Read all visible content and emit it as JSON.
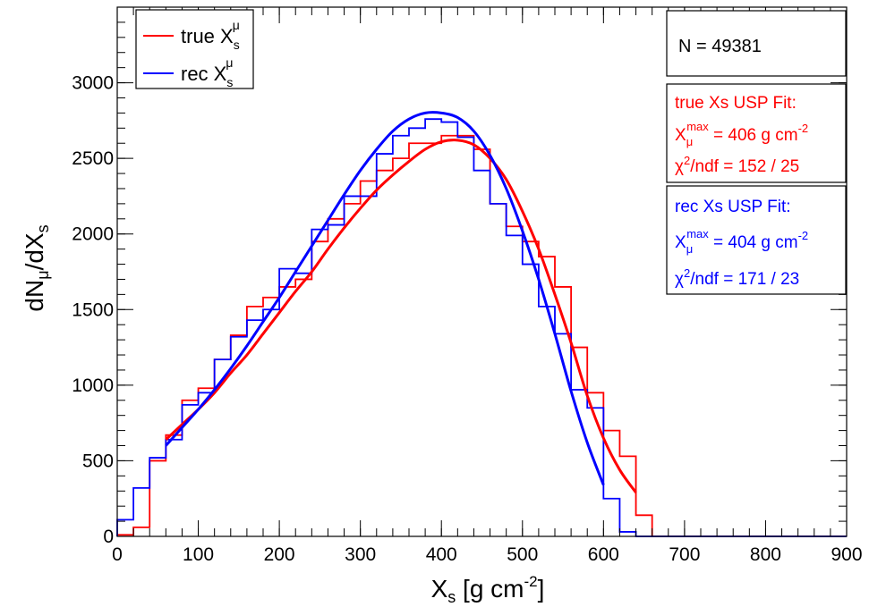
{
  "chart_data": {
    "type": "line",
    "xlabel": "X",
    "xlabel_sub": "s",
    "xlabel_unit_open": " [g cm",
    "xlabel_unit_sup": "-2",
    "xlabel_unit_close": "]",
    "ylabel": "dN",
    "ylabel_sub1": "μ",
    "ylabel_mid": "/dX",
    "ylabel_sub2": "s",
    "xlim": [
      0,
      900
    ],
    "ylim": [
      0,
      3500
    ],
    "x_ticks": [
      0,
      100,
      200,
      300,
      400,
      500,
      600,
      700,
      800,
      900
    ],
    "y_ticks": [
      0,
      500,
      1000,
      1500,
      2000,
      2500,
      3000
    ],
    "bin_edges": [
      0,
      20,
      40,
      60,
      80,
      100,
      120,
      140,
      160,
      180,
      200,
      220,
      240,
      260,
      280,
      300,
      320,
      340,
      360,
      380,
      400,
      420,
      440,
      460,
      480,
      500,
      520,
      540,
      560,
      580,
      600,
      620,
      640,
      660,
      680,
      700,
      720,
      740,
      760,
      780,
      800,
      820,
      840,
      860,
      880,
      900
    ],
    "series": [
      {
        "name": "true",
        "color": "#ff0000",
        "hist": [
          10,
          60,
          500,
          670,
          900,
          980,
          1170,
          1330,
          1520,
          1580,
          1650,
          1700,
          1950,
          2100,
          2200,
          2350,
          2420,
          2500,
          2600,
          2600,
          2650,
          2650,
          2560,
          2200,
          2050,
          1950,
          1850,
          1650,
          1250,
          950,
          700,
          530,
          140,
          0,
          0,
          0,
          0,
          0,
          0,
          0,
          0,
          0,
          0,
          0,
          0
        ],
        "fit_x": [
          60,
          80,
          100,
          120,
          140,
          160,
          180,
          200,
          220,
          240,
          260,
          280,
          300,
          320,
          340,
          360,
          380,
          400,
          420,
          440,
          460,
          480,
          500,
          520,
          540,
          560,
          580,
          600,
          620,
          640
        ],
        "fit_y": [
          640,
          740,
          840,
          950,
          1080,
          1200,
          1340,
          1480,
          1620,
          1750,
          1900,
          2040,
          2170,
          2290,
          2390,
          2480,
          2560,
          2610,
          2620,
          2590,
          2500,
          2360,
          2150,
          1900,
          1600,
          1280,
          930,
          650,
          440,
          290
        ]
      },
      {
        "name": "rec",
        "color": "#0000ff",
        "hist": [
          110,
          320,
          520,
          640,
          870,
          950,
          1170,
          1320,
          1430,
          1500,
          1770,
          1740,
          2030,
          2060,
          2250,
          2250,
          2530,
          2650,
          2700,
          2760,
          2740,
          2640,
          2420,
          2200,
          1990,
          1800,
          1520,
          1340,
          970,
          850,
          250,
          30,
          0,
          0,
          0,
          0,
          0,
          0,
          0,
          0,
          0,
          0,
          0,
          0,
          0
        ],
        "fit_x": [
          60,
          80,
          100,
          120,
          140,
          160,
          180,
          200,
          220,
          240,
          260,
          280,
          300,
          320,
          340,
          360,
          380,
          400,
          420,
          440,
          460,
          480,
          500,
          520,
          540,
          560,
          580,
          600
        ],
        "fit_y": [
          600,
          720,
          840,
          970,
          1110,
          1260,
          1420,
          1580,
          1750,
          1920,
          2090,
          2260,
          2420,
          2560,
          2680,
          2760,
          2800,
          2800,
          2770,
          2680,
          2520,
          2300,
          2020,
          1700,
          1340,
          960,
          620,
          340
        ]
      }
    ],
    "legend": [
      {
        "label": "true X",
        "sub": "s",
        "sup": "μ",
        "color": "#ff0000"
      },
      {
        "label": "rec X",
        "sub": "s",
        "sup": "μ",
        "color": "#0000ff"
      }
    ],
    "legend_position": "top-left",
    "stats_box": {
      "text": "N = 49381"
    },
    "fit_boxes": [
      {
        "color": "#ff0000",
        "title": "true Xs USP Fit:",
        "xmax_main": "X",
        "xmax_sub": "μ",
        "xmax_sup": "max",
        "xmax_value": " = 406 g cm",
        "xmax_unit_sup": "-2",
        "chi_main": "χ",
        "chi_sup": "2",
        "chi_value": "/ndf = 152 / 25"
      },
      {
        "color": "#0000ff",
        "title": "rec Xs USP Fit:",
        "xmax_main": "X",
        "xmax_sub": "μ",
        "xmax_sup": "max",
        "xmax_value": " = 404 g cm",
        "xmax_unit_sup": "-2",
        "chi_main": "χ",
        "chi_sup": "2",
        "chi_value": "/ndf = 171 / 23"
      }
    ],
    "grid": false
  }
}
